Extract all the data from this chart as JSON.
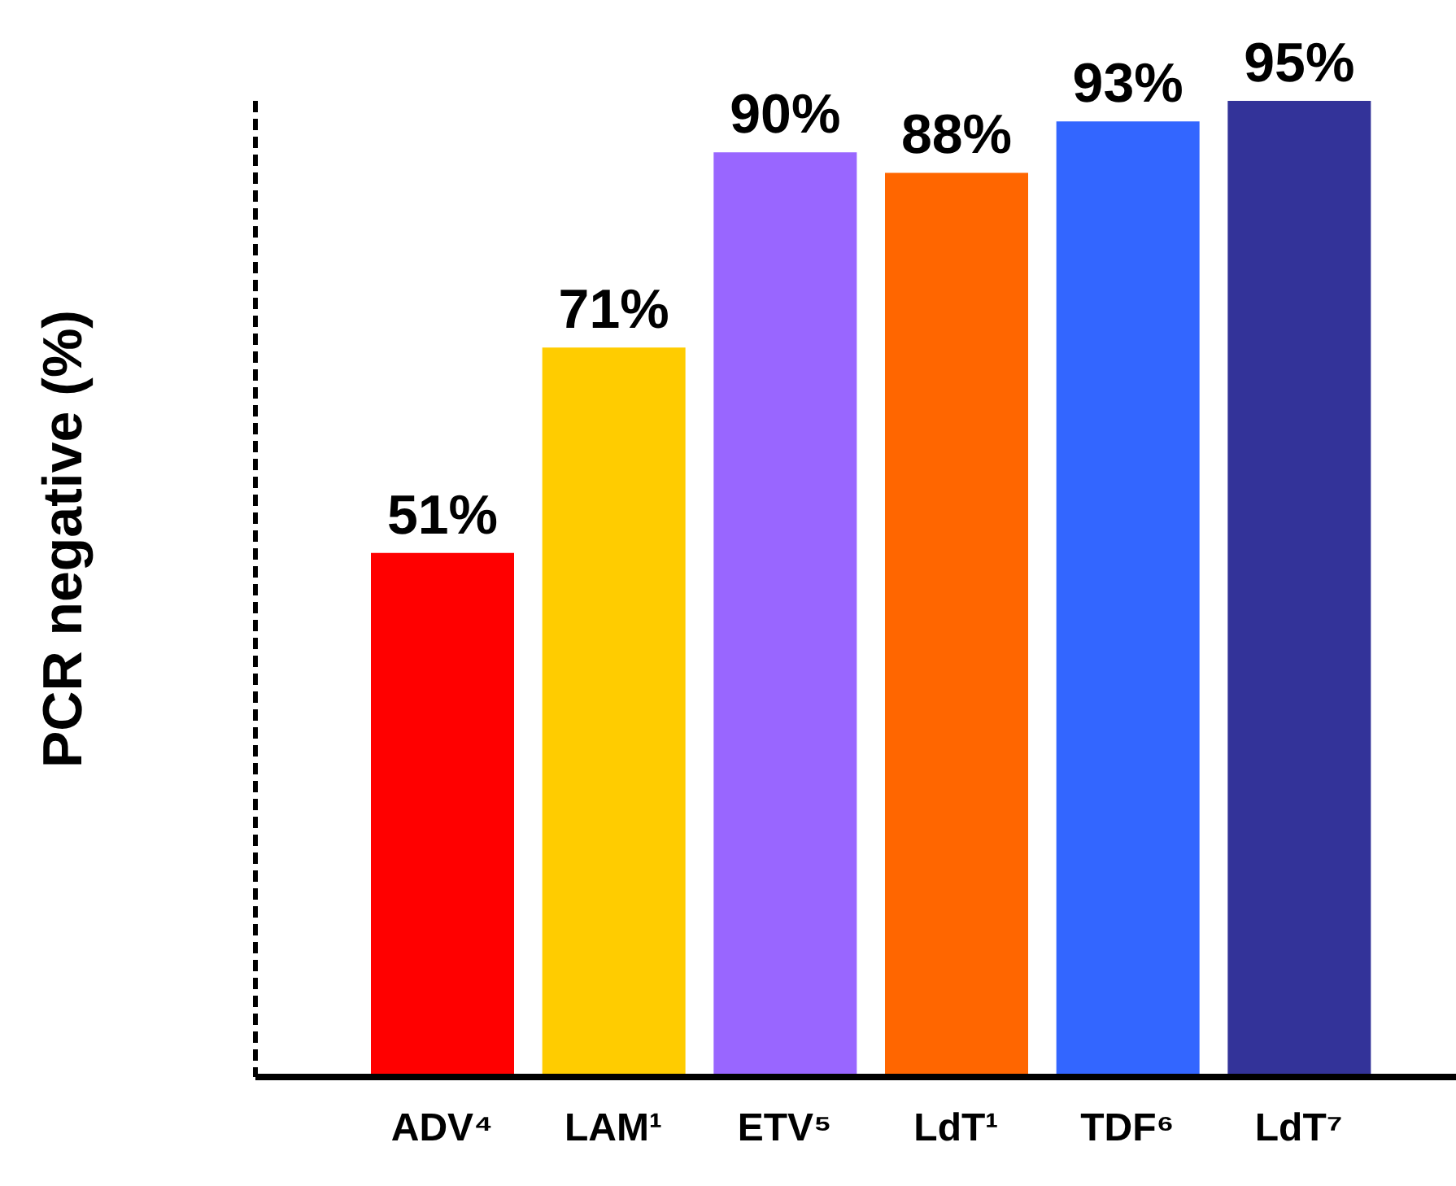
{
  "chart_data": {
    "type": "bar",
    "ylabel": "PCR negative (%)",
    "categories": [
      "ADV⁴",
      "LAM¹",
      "ETV⁵",
      "LdT¹",
      "TDF⁶",
      "LdT⁷"
    ],
    "values": [
      51,
      71,
      90,
      88,
      93,
      95
    ],
    "value_labels": [
      "51%",
      "71%",
      "90%",
      "88%",
      "93%",
      "95%"
    ],
    "colors": [
      "#ff0000",
      "#ffcc00",
      "#9966ff",
      "#ff6600",
      "#3366ff",
      "#333399"
    ],
    "tick_labels": "x"
  }
}
